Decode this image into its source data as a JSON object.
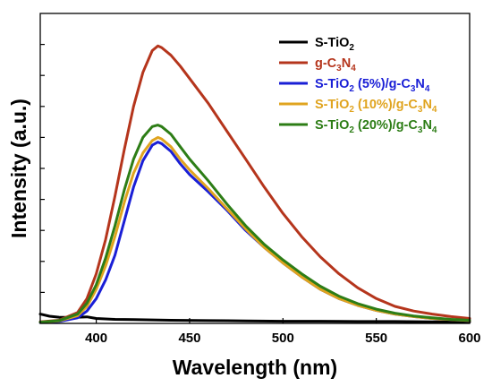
{
  "chart_data": {
    "type": "line",
    "xlabel": "Wavelength (nm)",
    "ylabel": "Intensity (a.u.)",
    "xlim": [
      370,
      600
    ],
    "ylim": [
      0,
      100
    ],
    "x_ticks": [
      400,
      450,
      500,
      550,
      600
    ],
    "y_tick_labels": false,
    "y_minor_ticks": [
      10,
      20,
      30,
      40,
      50,
      60,
      70,
      80,
      90
    ],
    "grid": false,
    "legend_position": "top-right",
    "series": [
      {
        "name": "S-TiO2",
        "legend_parts": [
          [
            "S-TiO",
            "normal"
          ],
          [
            "2",
            "sub"
          ]
        ],
        "color": "#000000",
        "x": [
          370,
          375,
          380,
          385,
          390,
          395,
          400,
          410,
          420,
          440,
          460,
          480,
          500,
          520,
          540,
          560,
          580,
          600
        ],
        "y": [
          3.0,
          2.3,
          2.0,
          1.9,
          2.0,
          2.1,
          1.6,
          1.3,
          1.2,
          1.0,
          0.9,
          0.8,
          0.7,
          0.7,
          0.6,
          0.6,
          0.5,
          0.5
        ]
      },
      {
        "name": "g-C3N4",
        "legend_parts": [
          [
            "g-C",
            "normal"
          ],
          [
            "3",
            "sub"
          ],
          [
            "N",
            "normal"
          ],
          [
            "4",
            "sub"
          ]
        ],
        "color": "#b5351c",
        "x": [
          370,
          380,
          390,
          395,
          400,
          405,
          410,
          415,
          420,
          425,
          430,
          433,
          435,
          440,
          445,
          450,
          460,
          470,
          480,
          490,
          500,
          510,
          520,
          530,
          540,
          550,
          560,
          570,
          580,
          590,
          600
        ],
        "y": [
          0.5,
          1.0,
          3.5,
          8.0,
          16.0,
          27.0,
          41.0,
          56.0,
          70.0,
          81.0,
          88.0,
          89.5,
          89.0,
          86.5,
          83.0,
          79.0,
          71.0,
          62.0,
          53.0,
          44.0,
          35.5,
          28.0,
          21.5,
          16.0,
          11.5,
          8.0,
          5.5,
          4.0,
          3.0,
          2.2,
          1.6
        ]
      },
      {
        "name": "S-TiO2 (5%)/g-C3N4",
        "legend_parts": [
          [
            "S-TiO",
            "normal"
          ],
          [
            "2",
            "sub"
          ],
          [
            " (5%)/g-C",
            "normal"
          ],
          [
            "3",
            "sub"
          ],
          [
            "N",
            "normal"
          ],
          [
            "4",
            "sub"
          ]
        ],
        "color": "#1a1fd6",
        "x": [
          370,
          380,
          390,
          395,
          400,
          405,
          410,
          415,
          420,
          425,
          430,
          433,
          435,
          440,
          445,
          450,
          460,
          470,
          480,
          490,
          500,
          510,
          520,
          530,
          540,
          550,
          560,
          570,
          580,
          590,
          600
        ],
        "y": [
          0.3,
          0.6,
          1.8,
          4.0,
          8.0,
          14.0,
          22.0,
          33.0,
          44.0,
          52.5,
          57.5,
          58.5,
          58.0,
          55.5,
          51.5,
          48.0,
          42.5,
          36.5,
          30.0,
          24.5,
          19.5,
          15.0,
          11.0,
          8.0,
          5.8,
          4.2,
          3.0,
          2.2,
          1.6,
          1.2,
          0.9
        ]
      },
      {
        "name": "S-TiO2 (10%)/g-C3N4",
        "legend_parts": [
          [
            "S-TiO",
            "normal"
          ],
          [
            "2",
            "sub"
          ],
          [
            " (10%)/g-C",
            "normal"
          ],
          [
            "3",
            "sub"
          ],
          [
            "N",
            "normal"
          ],
          [
            "4",
            "sub"
          ]
        ],
        "color": "#e0a41f",
        "x": [
          370,
          380,
          390,
          395,
          400,
          405,
          410,
          415,
          420,
          425,
          430,
          433,
          435,
          440,
          445,
          450,
          460,
          470,
          480,
          490,
          500,
          510,
          520,
          530,
          540,
          550,
          560,
          570,
          580,
          590,
          600
        ],
        "y": [
          0.4,
          0.8,
          2.5,
          5.5,
          11.0,
          18.5,
          28.0,
          39.0,
          48.5,
          55.0,
          59.0,
          60.0,
          59.5,
          57.0,
          53.0,
          49.5,
          43.5,
          37.0,
          30.5,
          24.5,
          19.5,
          15.0,
          11.0,
          8.0,
          5.8,
          4.2,
          3.0,
          2.2,
          1.6,
          1.2,
          0.9
        ]
      },
      {
        "name": "S-TiO2 (20%)/g-C3N4",
        "legend_parts": [
          [
            "S-TiO",
            "normal"
          ],
          [
            "2",
            "sub"
          ],
          [
            " (20%)/g-C",
            "normal"
          ],
          [
            "3",
            "sub"
          ],
          [
            "N",
            "normal"
          ],
          [
            "4",
            "sub"
          ]
        ],
        "color": "#2d7d16",
        "x": [
          370,
          380,
          390,
          395,
          400,
          405,
          410,
          415,
          420,
          425,
          430,
          433,
          435,
          440,
          445,
          450,
          460,
          470,
          480,
          490,
          500,
          510,
          520,
          530,
          540,
          550,
          560,
          570,
          580,
          590,
          600
        ],
        "y": [
          0.4,
          0.9,
          3.0,
          6.5,
          12.5,
          21.0,
          31.5,
          43.0,
          53.0,
          60.0,
          63.5,
          64.0,
          63.5,
          61.0,
          57.0,
          53.0,
          46.0,
          38.5,
          31.5,
          25.5,
          20.5,
          16.0,
          12.0,
          8.8,
          6.4,
          4.6,
          3.3,
          2.4,
          1.8,
          1.3,
          1.0
        ]
      }
    ]
  }
}
